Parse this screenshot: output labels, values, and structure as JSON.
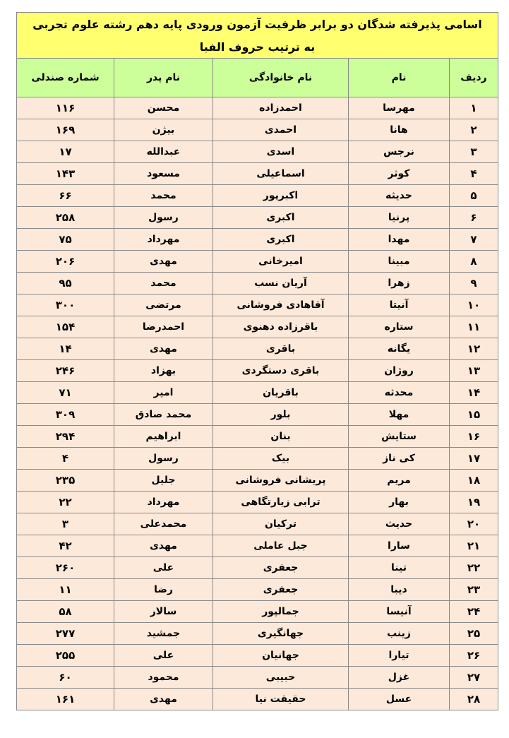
{
  "title": {
    "line1": "اسامی پذیرفته شدگان دو برابر ظرفیت آزمون ورودی پایه دهم رشته علوم تجربی",
    "line2": "به ترتیب حروف الفبا"
  },
  "colors": {
    "title_bg": "#ffff6f",
    "header_bg": "#ccff99",
    "row_bg": "#fde9d9"
  },
  "columns": [
    "ردیف",
    "نام",
    "نام خانوادگی",
    "نام پدر",
    "شماره صندلی"
  ],
  "rows": [
    [
      "۱",
      "مهرسا",
      "احمدزاده",
      "محسن",
      "۱۱۶"
    ],
    [
      "۲",
      "هانا",
      "احمدی",
      "بیژن",
      "۱۶۹"
    ],
    [
      "۳",
      "نرجس",
      "اسدی",
      "عبدالله",
      "۱۷"
    ],
    [
      "۴",
      "کوثر",
      "اسماعیلی",
      "مسعود",
      "۱۴۳"
    ],
    [
      "۵",
      "حدیثه",
      "اکبرپور",
      "محمد",
      "۶۶"
    ],
    [
      "۶",
      "پرنیا",
      "اکبری",
      "رسول",
      "۲۵۸"
    ],
    [
      "۷",
      "مهدا",
      "اکبری",
      "مهرداد",
      "۷۵"
    ],
    [
      "۸",
      "مبینا",
      "امیرخانی",
      "مهدی",
      "۲۰۶"
    ],
    [
      "۹",
      "زهرا",
      "آریان نسب",
      "محمد",
      "۹۵"
    ],
    [
      "۱۰",
      "آنیتا",
      "آقاهادی فروشانی",
      "مرتضی",
      "۳۰۰"
    ],
    [
      "۱۱",
      "ستاره",
      "باقرزاده دهنوی",
      "احمدرضا",
      "۱۵۴"
    ],
    [
      "۱۲",
      "یگانه",
      "باقری",
      "مهدی",
      "۱۴"
    ],
    [
      "۱۳",
      "روژان",
      "باقری دستگردی",
      "بهزاد",
      "۲۴۶"
    ],
    [
      "۱۴",
      "محدثه",
      "باقریان",
      "امیر",
      "۷۱"
    ],
    [
      "۱۵",
      "مهلا",
      "بلور",
      "محمد صادق",
      "۳۰۹"
    ],
    [
      "۱۶",
      "ستایش",
      "بنان",
      "ابراهیم",
      "۲۹۴"
    ],
    [
      "۱۷",
      "کی ناز",
      "بیک",
      "رسول",
      "۴"
    ],
    [
      "۱۸",
      "مریم",
      "پریشانی فروشانی",
      "جلیل",
      "۲۳۵"
    ],
    [
      "۱۹",
      "بهار",
      "ترابی زیارتگاهی",
      "مهرداد",
      "۲۲"
    ],
    [
      "۲۰",
      "حدیث",
      "ترکیان",
      "محمدعلی",
      "۳"
    ],
    [
      "۲۱",
      "سارا",
      "جبل عاملی",
      "مهدی",
      "۴۲"
    ],
    [
      "۲۲",
      "تینا",
      "جعفری",
      "علی",
      "۲۶۰"
    ],
    [
      "۲۳",
      "دیبا",
      "جعفری",
      "رضا",
      "۱۱"
    ],
    [
      "۲۴",
      "آنیسا",
      "جمالپور",
      "سالار",
      "۵۸"
    ],
    [
      "۲۵",
      "زینب",
      "جهانگیری",
      "جمشید",
      "۲۷۷"
    ],
    [
      "۲۶",
      "تیارا",
      "جهانیان",
      "علی",
      "۲۵۵"
    ],
    [
      "۲۷",
      "غزل",
      "حبیبی",
      "محمود",
      "۶۰"
    ],
    [
      "۲۸",
      "عسل",
      "حقیقت نیا",
      "مهدی",
      "۱۶۱"
    ]
  ]
}
